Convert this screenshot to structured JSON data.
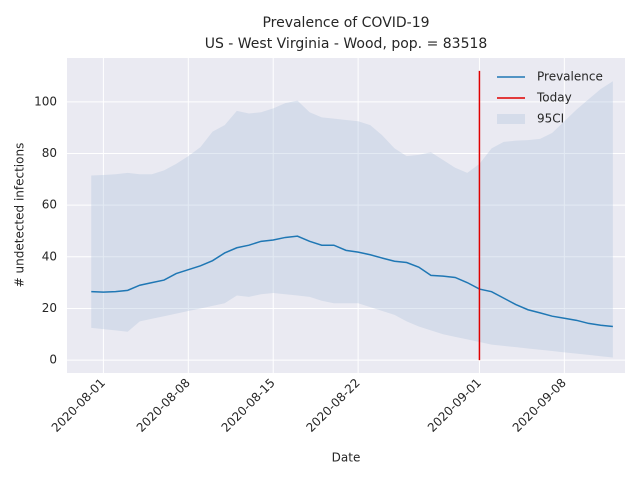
{
  "chart_data": {
    "type": "line",
    "title": "Prevalence of COVID-19",
    "subtitle": "US - West Virginia - Wood, pop. = 83518",
    "x_label": "Date",
    "y_label": "# undetected infections",
    "x": [
      "2020-07-31",
      "2020-08-01",
      "2020-08-02",
      "2020-08-03",
      "2020-08-04",
      "2020-08-05",
      "2020-08-06",
      "2020-08-07",
      "2020-08-08",
      "2020-08-09",
      "2020-08-10",
      "2020-08-11",
      "2020-08-12",
      "2020-08-13",
      "2020-08-14",
      "2020-08-15",
      "2020-08-16",
      "2020-08-17",
      "2020-08-18",
      "2020-08-19",
      "2020-08-20",
      "2020-08-21",
      "2020-08-22",
      "2020-08-23",
      "2020-08-24",
      "2020-08-25",
      "2020-08-26",
      "2020-08-27",
      "2020-08-28",
      "2020-08-29",
      "2020-08-30",
      "2020-08-31",
      "2020-09-01",
      "2020-09-02",
      "2020-09-03",
      "2020-09-04",
      "2020-09-05",
      "2020-09-06",
      "2020-09-07",
      "2020-09-08",
      "2020-09-09",
      "2020-09-10",
      "2020-09-11",
      "2020-09-12"
    ],
    "series": [
      {
        "name": "Prevalence",
        "color": "#1f77b4",
        "values": [
          26.5,
          26.3,
          26.5,
          27,
          29,
          30,
          31,
          33.5,
          35,
          36.5,
          38.5,
          41.5,
          43.5,
          44.5,
          46,
          46.5,
          47.5,
          48,
          46,
          44.5,
          44.5,
          42.5,
          41.8,
          40.8,
          39.5,
          38.3,
          37.8,
          36,
          32.8,
          32.5,
          32,
          30,
          27.5,
          26.5,
          24,
          21.5,
          19.5,
          18.3,
          17,
          16.2,
          15.4,
          14.2,
          13.5,
          13
        ]
      }
    ],
    "band": {
      "name": "95CI",
      "color": "#b0c4de",
      "upper": [
        71.5,
        71.7,
        72,
        72.5,
        72,
        72,
        73.5,
        76,
        79,
        82.5,
        88.5,
        91,
        96.5,
        95.5,
        96,
        97.5,
        99.5,
        100.5,
        96,
        94,
        93.5,
        93,
        92.5,
        91,
        87,
        82,
        79,
        79.5,
        80.5,
        77.5,
        74.5,
        72.5,
        76,
        82,
        84.5,
        85,
        85.2,
        85.7,
        88,
        92.5,
        97,
        101,
        105,
        108
      ],
      "lower": [
        12.5,
        12,
        11.5,
        11,
        15,
        16,
        17,
        18,
        19,
        20,
        21,
        22,
        25,
        24.5,
        25.5,
        26,
        25.5,
        25,
        24.5,
        23,
        22,
        22,
        22,
        20.5,
        19,
        17.5,
        15,
        13,
        11.5,
        10,
        9,
        8,
        7,
        6,
        5.5,
        5,
        4.5,
        4,
        3.5,
        3,
        2.5,
        2,
        1.5,
        1
      ]
    },
    "today": {
      "name": "Today",
      "color": "#e00000",
      "x": "2020-09-01",
      "ymin": 0,
      "ymax": 112
    },
    "xlim": [
      "2020-07-29",
      "2020-09-13"
    ],
    "xticks": [
      "2020-08-01",
      "2020-08-08",
      "2020-08-15",
      "2020-08-22",
      "2020-09-01",
      "2020-09-08"
    ],
    "ylim": [
      -5,
      117
    ],
    "yticks": [
      0,
      20,
      40,
      60,
      80,
      100
    ],
    "grid": true,
    "legend": "upper right"
  }
}
